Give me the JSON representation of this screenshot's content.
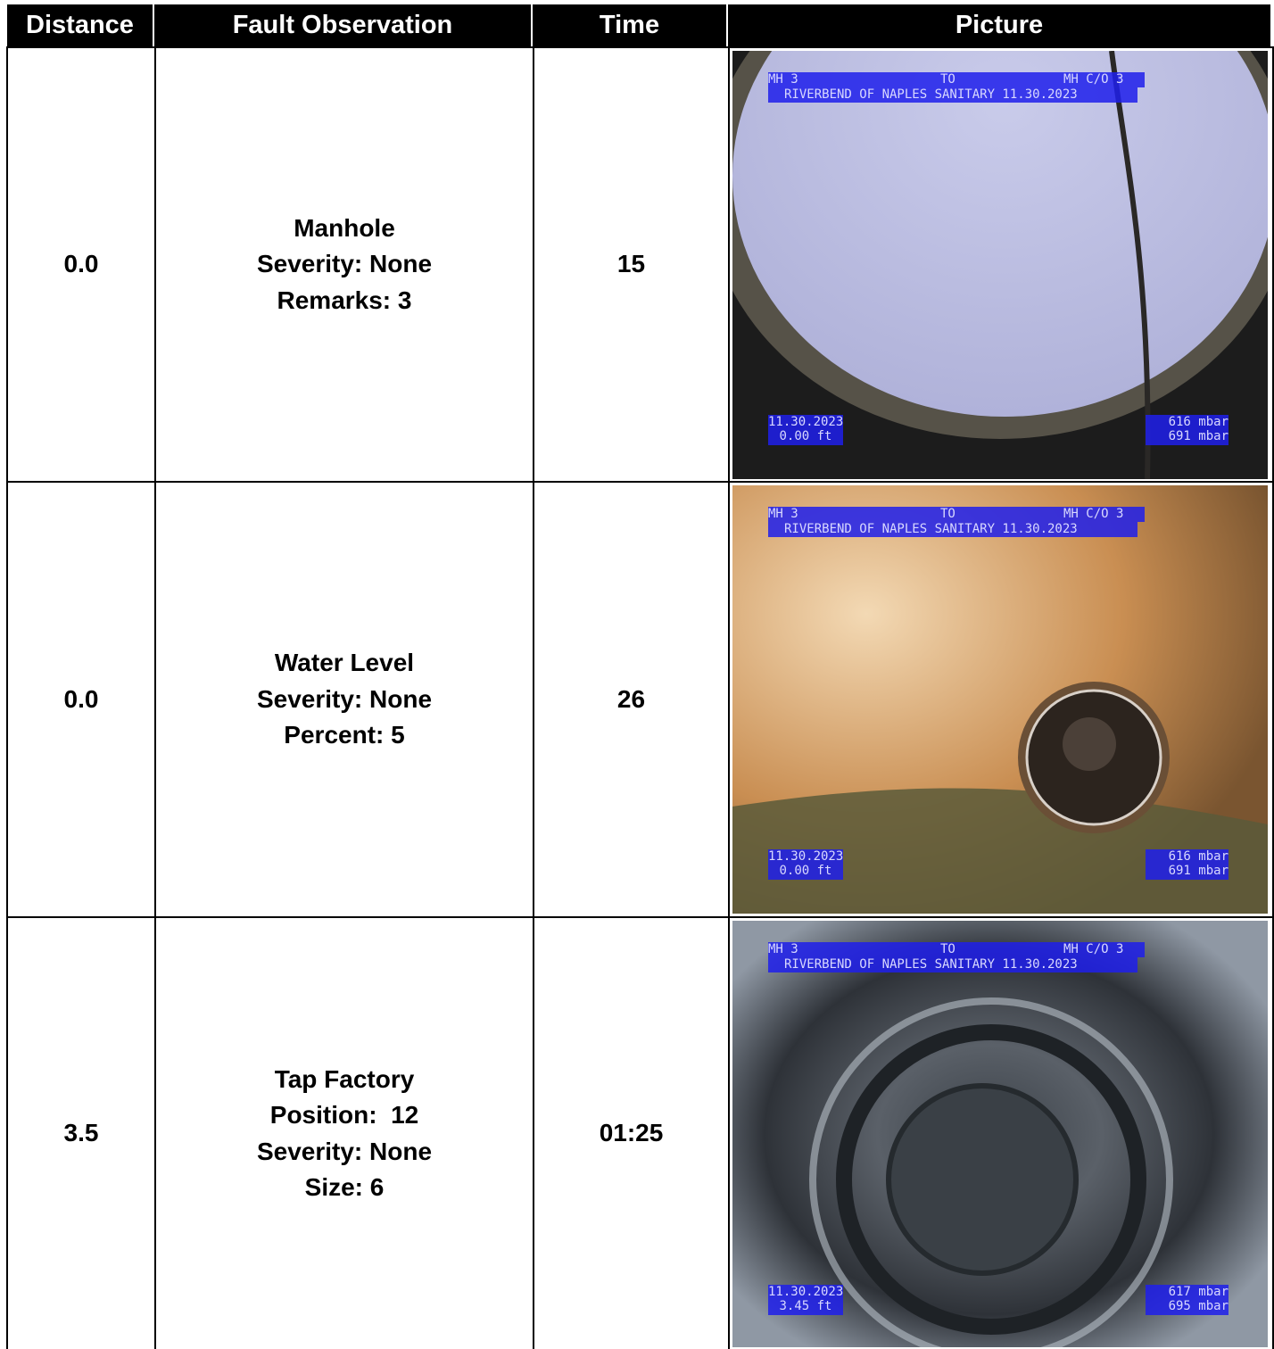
{
  "table": {
    "headers": [
      "Distance",
      "Fault Observation",
      "Time",
      "Picture"
    ],
    "rows": [
      {
        "distance": "0.0",
        "observation": [
          "Manhole",
          "Severity: None",
          "Remarks: 3"
        ],
        "time": "15",
        "picture": {
          "from": "MH 3",
          "to_label": "TO",
          "to": "MH C/O 3",
          "project": "RIVERBEND OF NAPLES SANITARY 11.30.2023",
          "date": "11.30.2023",
          "footage": "0.00 ft",
          "pressure_1": "616 mbar",
          "pressure_2": "691 mbar"
        }
      },
      {
        "distance": "0.0",
        "observation": [
          "Water Level",
          "Severity: None",
          "Percent: 5"
        ],
        "time": "26",
        "picture": {
          "from": "MH 3",
          "to_label": "TO",
          "to": "MH C/O 3",
          "project": "RIVERBEND OF NAPLES SANITARY 11.30.2023",
          "date": "11.30.2023",
          "footage": "0.00 ft",
          "pressure_1": "616 mbar",
          "pressure_2": "691 mbar"
        }
      },
      {
        "distance": "3.5",
        "observation": [
          "Tap Factory",
          "Position:  12",
          "Severity: None",
          "Size: 6"
        ],
        "time": "01:25",
        "picture": {
          "from": "MH 3",
          "to_label": "TO",
          "to": "MH C/O 3",
          "project": "RIVERBEND OF NAPLES SANITARY 11.30.2023",
          "date": "11.30.2023",
          "footage": "3.45 ft",
          "pressure_1": "617 mbar",
          "pressure_2": "695 mbar"
        }
      }
    ]
  }
}
